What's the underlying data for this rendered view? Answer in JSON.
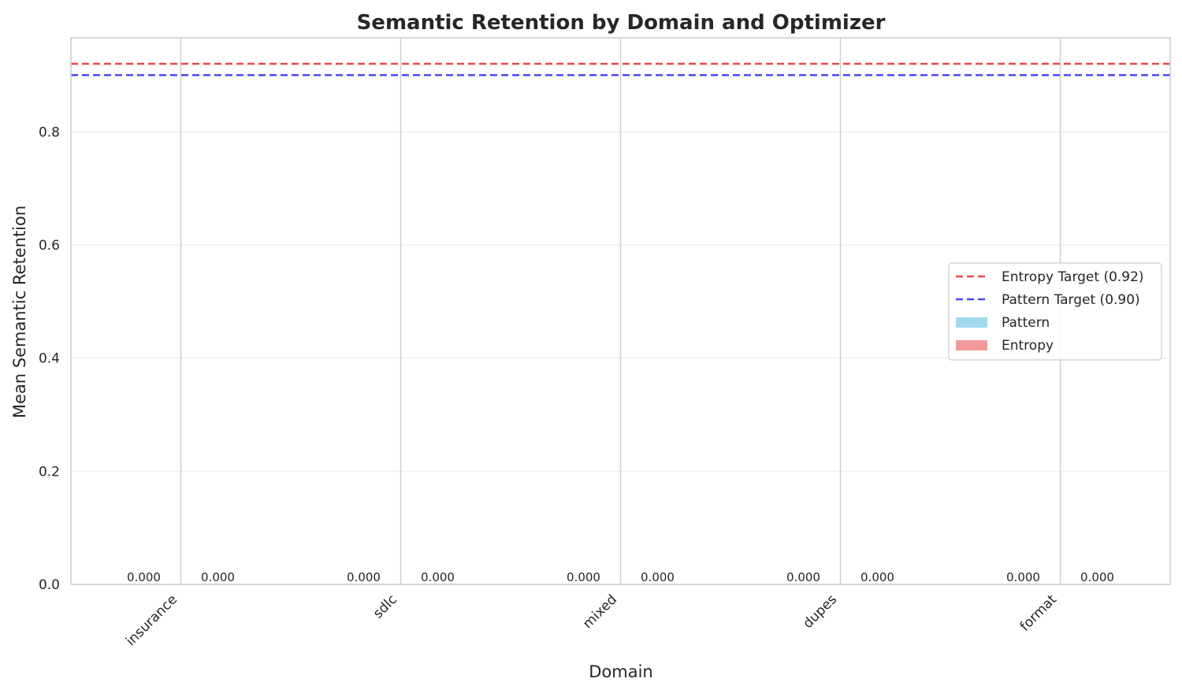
{
  "chart_data": {
    "type": "bar",
    "title": "Semantic Retention by Domain and Optimizer",
    "xlabel": "Domain",
    "ylabel": "Mean Semantic Retention",
    "categories": [
      "insurance",
      "sdlc",
      "mixed",
      "dupes",
      "format"
    ],
    "series": [
      {
        "name": "Pattern",
        "color": "#87ceeb",
        "values": [
          0.0,
          0.0,
          0.0,
          0.0,
          0.0
        ],
        "labels": [
          "0.000",
          "0.000",
          "0.000",
          "0.000",
          "0.000"
        ]
      },
      {
        "name": "Entropy",
        "color": "#f08080",
        "values": [
          0.0,
          0.0,
          0.0,
          0.0,
          0.0
        ],
        "labels": [
          "0.000",
          "0.000",
          "0.000",
          "0.000",
          "0.000"
        ]
      }
    ],
    "reference_lines": [
      {
        "name": "Entropy Target (0.92)",
        "value": 0.92,
        "color": "#e8262a",
        "style": "dashed"
      },
      {
        "name": "Pattern Target (0.90)",
        "value": 0.9,
        "color": "#2a27f0",
        "style": "dashed"
      }
    ],
    "ylim": [
      0.0,
      0.966
    ],
    "yticks": [
      0.0,
      0.2,
      0.4,
      0.6,
      0.8
    ],
    "ytick_labels": [
      "0.0",
      "0.2",
      "0.4",
      "0.6",
      "0.8"
    ],
    "grid": true,
    "legend_position": "right"
  }
}
